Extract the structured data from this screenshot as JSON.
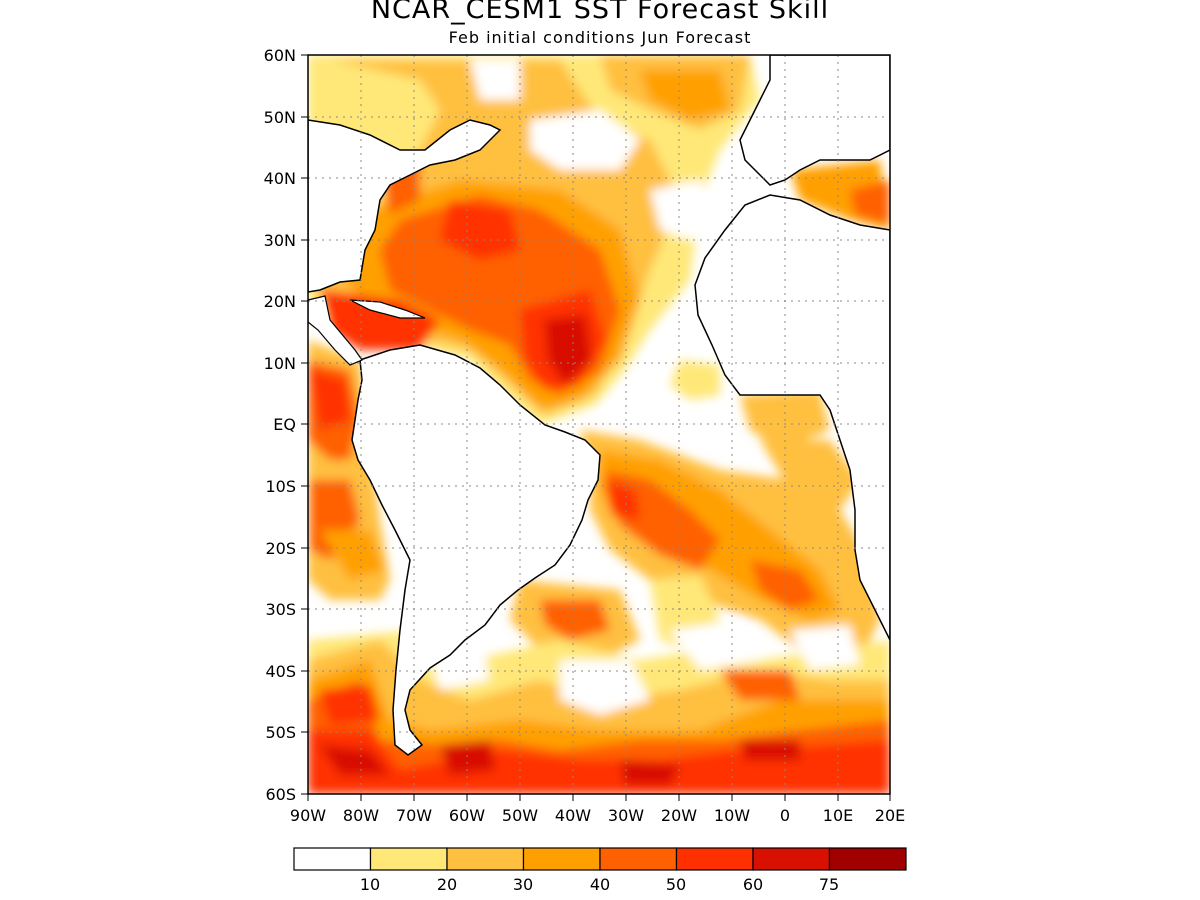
{
  "title": "NCAR_CESM1 SST Forecast Skill",
  "subtitle": "Feb initial conditions  Jun Forecast",
  "map": {
    "lat_ticks": [
      "60N",
      "50N",
      "40N",
      "30N",
      "20N",
      "10N",
      "EQ",
      "10S",
      "20S",
      "30S",
      "40S",
      "50S",
      "60S"
    ],
    "lon_ticks": [
      "90W",
      "80W",
      "70W",
      "60W",
      "50W",
      "40W",
      "30W",
      "20W",
      "10W",
      "0",
      "10E",
      "20E"
    ],
    "extent": {
      "lon_min": -90,
      "lon_max": 20,
      "lat_min": -60,
      "lat_max": 60
    },
    "gridlines": "dotted"
  },
  "legend": {
    "colors": [
      "#ffffff",
      "#ffe878",
      "#ffc040",
      "#ffa000",
      "#ff6000",
      "#ff3000",
      "#d81000",
      "#a00000"
    ],
    "labels": [
      "10",
      "20",
      "30",
      "40",
      "50",
      "60",
      "75"
    ]
  }
}
